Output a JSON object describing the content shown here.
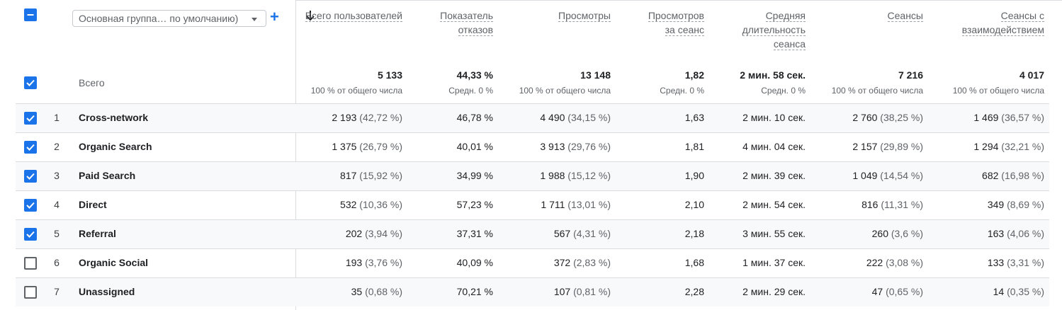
{
  "dimension_selector": {
    "value": "Основная группа… по умолчанию)"
  },
  "columns": [
    {
      "key": "users",
      "label": "Всего пользователей",
      "total": "5 133",
      "total_sub": "100 % от общего числа"
    },
    {
      "key": "bounce",
      "label": "Показатель отказов",
      "total": "44,33 %",
      "total_sub": "Средн. 0 %"
    },
    {
      "key": "views",
      "label": "Просмотры",
      "total": "13 148",
      "total_sub": "100 % от общего числа"
    },
    {
      "key": "views_per_session",
      "label": "Просмотров за сеанс",
      "total": "1,82",
      "total_sub": "Средн. 0 %"
    },
    {
      "key": "avg_duration",
      "label": "Средняя длительность сеанса",
      "total": "2 мин. 58 сек.",
      "total_sub": "Средн. 0 %"
    },
    {
      "key": "sessions",
      "label": "Сеансы",
      "total": "7 216",
      "total_sub": "100 % от общего числа"
    },
    {
      "key": "engaged_sessions",
      "label": "Сеансы с взаимодействием",
      "total": "4 017",
      "total_sub": "100 % от общего числа"
    }
  ],
  "totals_label": "Всего",
  "rows": [
    {
      "num": "1",
      "name": "Cross-network",
      "checked": true,
      "users": "2 193",
      "users_pct": "(42,72 %)",
      "bounce": "46,78 %",
      "views": "4 490",
      "views_pct": "(34,15 %)",
      "vps": "1,63",
      "duration": "2 мин. 10 сек.",
      "sessions": "2 760",
      "sessions_pct": "(38,25 %)",
      "engaged": "1 469",
      "engaged_pct": "(36,57 %)"
    },
    {
      "num": "2",
      "name": "Organic Search",
      "checked": true,
      "users": "1 375",
      "users_pct": "(26,79 %)",
      "bounce": "40,01 %",
      "views": "3 913",
      "views_pct": "(29,76 %)",
      "vps": "1,81",
      "duration": "4 мин. 04 сек.",
      "sessions": "2 157",
      "sessions_pct": "(29,89 %)",
      "engaged": "1 294",
      "engaged_pct": "(32,21 %)"
    },
    {
      "num": "3",
      "name": "Paid Search",
      "checked": true,
      "users": "817",
      "users_pct": "(15,92 %)",
      "bounce": "34,99 %",
      "views": "1 988",
      "views_pct": "(15,12 %)",
      "vps": "1,90",
      "duration": "2 мин. 39 сек.",
      "sessions": "1 049",
      "sessions_pct": "(14,54 %)",
      "engaged": "682",
      "engaged_pct": "(16,98 %)"
    },
    {
      "num": "4",
      "name": "Direct",
      "checked": true,
      "users": "532",
      "users_pct": "(10,36 %)",
      "bounce": "57,23 %",
      "views": "1 711",
      "views_pct": "(13,01 %)",
      "vps": "2,10",
      "duration": "2 мин. 54 сек.",
      "sessions": "816",
      "sessions_pct": "(11,31 %)",
      "engaged": "349",
      "engaged_pct": "(8,69 %)"
    },
    {
      "num": "5",
      "name": "Referral",
      "checked": true,
      "users": "202",
      "users_pct": "(3,94 %)",
      "bounce": "37,31 %",
      "views": "567",
      "views_pct": "(4,31 %)",
      "vps": "2,18",
      "duration": "3 мин. 55 сек.",
      "sessions": "260",
      "sessions_pct": "(3,6 %)",
      "engaged": "163",
      "engaged_pct": "(4,06 %)"
    },
    {
      "num": "6",
      "name": "Organic Social",
      "checked": false,
      "users": "193",
      "users_pct": "(3,76 %)",
      "bounce": "40,09 %",
      "views": "372",
      "views_pct": "(2,83 %)",
      "vps": "1,68",
      "duration": "1 мин. 37 сек.",
      "sessions": "222",
      "sessions_pct": "(3,08 %)",
      "engaged": "133",
      "engaged_pct": "(3,31 %)"
    },
    {
      "num": "7",
      "name": "Unassigned",
      "checked": false,
      "users": "35",
      "users_pct": "(0,68 %)",
      "bounce": "70,21 %",
      "views": "107",
      "views_pct": "(0,81 %)",
      "vps": "2,28",
      "duration": "2 мин. 29 сек.",
      "sessions": "47",
      "sessions_pct": "(0,65 %)",
      "engaged": "14",
      "engaged_pct": "(0,35 %)"
    }
  ],
  "colors": {
    "accent": "#1a73e8",
    "divider": "#dadce0",
    "muted": "#5f6368"
  }
}
